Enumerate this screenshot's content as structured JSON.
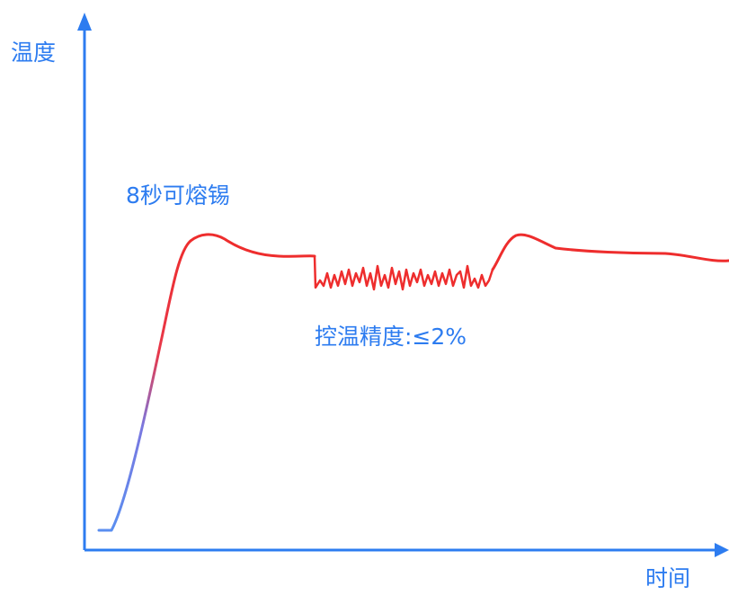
{
  "diagram": {
    "y_axis_label": "温度",
    "x_axis_label": "时间",
    "annotation_melt": "8秒可熔锡",
    "annotation_precision": "控温精度:≤2%",
    "colors": {
      "axis": "#2d7cf0",
      "text": "#2d7cf0",
      "curve_start": "#5a8ef0",
      "curve_end": "#ee2d2d"
    }
  }
}
